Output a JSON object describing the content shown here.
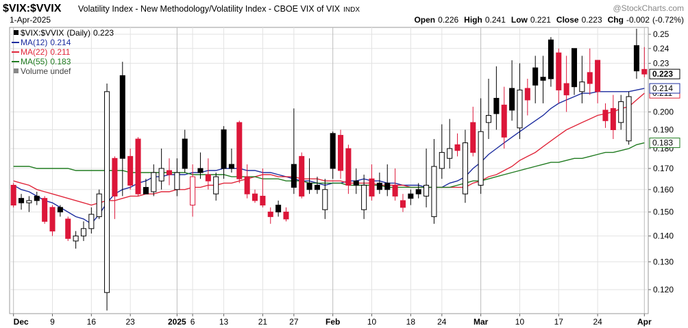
{
  "chart_data": {
    "type": "candlestick",
    "title": "$VIX:$VVIX",
    "subtitle": "Volatility Index - New Methodology/Volatility Index - CBOE VIX of VIX",
    "exchange": "INDX",
    "source": "@StockCharts.com",
    "date": "1-Apr-2025",
    "period": "(Daily)",
    "quote_labels": [
      "Open",
      "High",
      "Low",
      "Close",
      "Chg"
    ],
    "change": -0.002,
    "change_pct": {
      "value": -0.72,
      "label": "(-0.72%)"
    },
    "volume_note": "Volume undef",
    "categories": [
      "Dec",
      null,
      null,
      null,
      null,
      "9",
      null,
      null,
      null,
      null,
      "16",
      null,
      null,
      null,
      null,
      "23",
      null,
      null,
      null,
      null,
      null,
      "2025",
      null,
      "6",
      null,
      null,
      null,
      "13",
      null,
      null,
      null,
      null,
      "21",
      null,
      null,
      null,
      "27",
      null,
      null,
      null,
      null,
      "Feb",
      null,
      null,
      null,
      null,
      "10",
      null,
      null,
      null,
      null,
      "18",
      null,
      null,
      null,
      "24",
      null,
      null,
      null,
      null,
      "Mar",
      null,
      null,
      null,
      null,
      "10",
      null,
      null,
      null,
      null,
      "17",
      null,
      null,
      null,
      null,
      "24",
      null,
      null,
      null,
      null,
      null,
      "Apr"
    ],
    "open": [
      0.162,
      0.156,
      0.154,
      0.157,
      0.156,
      0.152,
      0.152,
      0.147,
      0.138,
      0.14,
      0.143,
      0.148,
      0.119,
      0.175,
      0.222,
      0.176,
      0.185,
      0.161,
      0.159,
      0.164,
      0.169,
      0.16,
      0.185,
      0.153,
      0.17,
      0.167,
      0.158,
      0.19,
      0.172,
      0.194,
      0.166,
      0.158,
      0.157,
      0.15,
      0.153,
      0.15,
      0.172,
      0.176,
      0.163,
      0.162,
      0.151,
      0.188,
      0.187,
      0.18,
      0.164,
      0.151,
      0.165,
      0.163,
      0.163,
      0.162,
      0.155,
      0.158,
      0.16,
      0.157,
      0.148,
      0.17,
      0.175,
      0.182,
      0.158,
      0.194,
      0.162,
      0.194,
      0.208,
      0.204,
      0.214,
      0.191,
      0.214,
      0.227,
      0.221,
      0.246,
      0.237,
      0.217,
      0.24,
      0.212,
      0.224,
      0.232,
      0.201,
      0.202,
      0.194,
      0.184,
      0.242,
      0.226
    ],
    "high": [
      0.163,
      0.158,
      0.157,
      0.159,
      0.157,
      0.153,
      0.153,
      0.148,
      0.142,
      0.146,
      0.152,
      0.16,
      0.217,
      0.176,
      0.231,
      0.18,
      0.186,
      0.165,
      0.172,
      0.18,
      0.175,
      0.175,
      0.19,
      0.172,
      0.178,
      0.175,
      0.168,
      0.192,
      0.18,
      0.195,
      0.172,
      0.16,
      0.17,
      0.152,
      0.155,
      0.152,
      0.202,
      0.178,
      0.175,
      0.166,
      0.165,
      0.189,
      0.19,
      0.182,
      0.17,
      0.167,
      0.172,
      0.168,
      0.172,
      0.17,
      0.158,
      0.16,
      0.163,
      0.18,
      0.185,
      0.193,
      0.196,
      0.188,
      0.19,
      0.203,
      0.208,
      0.22,
      0.228,
      0.215,
      0.232,
      0.23,
      0.22,
      0.235,
      0.235,
      0.248,
      0.24,
      0.235,
      0.24,
      0.235,
      0.24,
      0.232,
      0.205,
      0.21,
      0.21,
      0.212,
      0.254,
      0.241
    ],
    "low": [
      0.152,
      0.151,
      0.15,
      0.153,
      0.145,
      0.14,
      0.148,
      0.138,
      0.135,
      0.138,
      0.141,
      0.147,
      0.113,
      0.147,
      0.157,
      0.16,
      0.157,
      0.158,
      0.157,
      0.16,
      0.162,
      0.157,
      0.168,
      0.148,
      0.165,
      0.16,
      0.155,
      0.165,
      0.168,
      0.163,
      0.156,
      0.154,
      0.152,
      0.145,
      0.148,
      0.146,
      0.158,
      0.156,
      0.158,
      0.158,
      0.147,
      0.165,
      0.165,
      0.158,
      0.158,
      0.147,
      0.155,
      0.158,
      0.157,
      0.155,
      0.15,
      0.153,
      0.156,
      0.152,
      0.145,
      0.165,
      0.17,
      0.176,
      0.154,
      0.176,
      0.158,
      0.185,
      0.19,
      0.18,
      0.195,
      0.185,
      0.198,
      0.205,
      0.205,
      0.215,
      0.205,
      0.2,
      0.21,
      0.205,
      0.21,
      0.205,
      0.191,
      0.185,
      0.19,
      0.182,
      0.22,
      0.221
    ],
    "close": [
      0.153,
      0.154,
      0.155,
      0.155,
      0.146,
      0.142,
      0.15,
      0.139,
      0.14,
      0.143,
      0.149,
      0.158,
      0.212,
      0.157,
      0.175,
      0.162,
      0.158,
      0.158,
      0.168,
      0.17,
      0.167,
      0.168,
      0.17,
      0.166,
      0.168,
      0.164,
      0.166,
      0.17,
      0.17,
      0.165,
      0.158,
      0.155,
      0.153,
      0.148,
      0.15,
      0.147,
      0.161,
      0.157,
      0.16,
      0.16,
      0.16,
      0.17,
      0.169,
      0.162,
      0.162,
      0.162,
      0.157,
      0.16,
      0.16,
      0.157,
      0.152,
      0.156,
      0.158,
      0.162,
      0.171,
      0.178,
      0.18,
      0.179,
      0.183,
      0.178,
      0.189,
      0.198,
      0.199,
      0.186,
      0.201,
      0.213,
      0.207,
      0.216,
      0.219,
      0.22,
      0.213,
      0.21,
      0.215,
      0.218,
      0.217,
      0.212,
      0.195,
      0.19,
      0.206,
      0.209,
      0.225,
      0.223
    ],
    "series": [
      {
        "name": "MA(12)",
        "color": "#1b2b9e",
        "values": [
          0.162,
          0.16,
          0.159,
          0.157,
          0.155,
          0.154,
          0.152,
          0.15,
          0.148,
          0.147,
          0.145,
          0.149,
          0.154,
          0.158,
          0.16,
          0.161,
          0.163,
          0.164,
          0.166,
          0.166,
          0.167,
          0.167,
          0.167,
          0.168,
          0.168,
          0.169,
          0.169,
          0.17,
          0.17,
          0.17,
          0.169,
          0.169,
          0.168,
          0.168,
          0.167,
          0.166,
          0.165,
          0.164,
          0.164,
          0.163,
          0.162,
          0.163,
          0.163,
          0.164,
          0.164,
          0.165,
          0.164,
          0.164,
          0.163,
          0.163,
          0.162,
          0.162,
          0.162,
          0.161,
          0.161,
          0.161,
          0.163,
          0.164,
          0.166,
          0.17,
          0.173,
          0.177,
          0.18,
          0.183,
          0.186,
          0.189,
          0.192,
          0.195,
          0.198,
          0.202,
          0.205,
          0.207,
          0.209,
          0.211,
          0.211,
          0.212,
          0.212,
          0.212,
          0.212,
          0.212,
          0.213,
          0.214
        ]
      },
      {
        "name": "MA(22)",
        "color": "#e0263a",
        "values": [
          0.164,
          0.163,
          0.162,
          0.16,
          0.159,
          0.158,
          0.157,
          0.156,
          0.155,
          0.154,
          0.153,
          0.154,
          0.155,
          0.155,
          0.156,
          0.157,
          0.157,
          0.158,
          0.158,
          0.159,
          0.159,
          0.16,
          0.16,
          0.161,
          0.161,
          0.162,
          0.162,
          0.163,
          0.163,
          0.164,
          0.165,
          0.166,
          0.167,
          0.167,
          0.166,
          0.166,
          0.166,
          0.165,
          0.165,
          0.165,
          0.164,
          0.164,
          0.164,
          0.163,
          0.163,
          0.163,
          0.163,
          0.162,
          0.162,
          0.162,
          0.162,
          0.161,
          0.161,
          0.161,
          0.161,
          0.161,
          0.161,
          0.161,
          0.161,
          0.163,
          0.164,
          0.166,
          0.167,
          0.169,
          0.171,
          0.174,
          0.176,
          0.178,
          0.181,
          0.184,
          0.187,
          0.19,
          0.192,
          0.194,
          0.196,
          0.198,
          0.199,
          0.2,
          0.202,
          0.203,
          0.207,
          0.211
        ]
      },
      {
        "name": "MA(55)",
        "color": "#1f7a1f",
        "values": [
          0.171,
          0.171,
          0.171,
          0.17,
          0.17,
          0.17,
          0.17,
          0.17,
          0.169,
          0.169,
          0.169,
          0.169,
          0.169,
          0.169,
          0.169,
          0.168,
          0.168,
          0.168,
          0.168,
          0.168,
          0.168,
          0.168,
          0.168,
          0.167,
          0.167,
          0.167,
          0.167,
          0.167,
          0.166,
          0.166,
          0.166,
          0.166,
          0.165,
          0.165,
          0.165,
          0.164,
          0.164,
          0.164,
          0.163,
          0.163,
          0.163,
          0.163,
          0.163,
          0.162,
          0.162,
          0.162,
          0.162,
          0.162,
          0.161,
          0.161,
          0.161,
          0.161,
          0.161,
          0.161,
          0.161,
          0.161,
          0.161,
          0.162,
          0.163,
          0.164,
          0.164,
          0.165,
          0.166,
          0.167,
          0.168,
          0.169,
          0.17,
          0.171,
          0.172,
          0.173,
          0.173,
          0.174,
          0.175,
          0.175,
          0.176,
          0.177,
          0.178,
          0.178,
          0.179,
          0.18,
          0.182,
          0.183
        ]
      }
    ],
    "colors": {
      "up": "#000000",
      "down": "#dc1639"
    },
    "log_scale": true,
    "grid": true,
    "ylim": [
      0.112,
      0.255
    ],
    "yticks": [
      {
        "value": 0.12,
        "label": "0.120"
      },
      {
        "value": 0.13,
        "label": "0.130"
      },
      {
        "value": 0.14,
        "label": "0.140"
      },
      {
        "value": 0.15,
        "label": "0.150"
      },
      {
        "value": 0.16,
        "label": "0.160"
      },
      {
        "value": 0.17,
        "label": "0.170"
      },
      {
        "value": 0.18,
        "label": "0.180"
      },
      {
        "value": 0.19,
        "label": "0.190"
      },
      {
        "value": 0.2,
        "label": "0.200"
      },
      0.23,
      0.24,
      0.25
    ]
  }
}
